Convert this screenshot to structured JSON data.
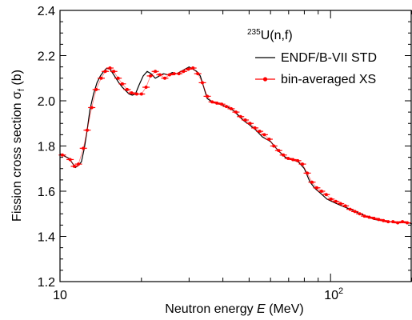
{
  "chart_data": {
    "type": "line",
    "xscale": "log",
    "xlim": [
      10,
      200
    ],
    "ylim": [
      1.2,
      2.4
    ],
    "xlabel_prefix": "Neutron energy ",
    "xlabel_var": "E",
    "xlabel_suffix": " (MeV)",
    "ylabel_prefix": "Fission cross section σ",
    "ylabel_sub": "f",
    "ylabel_suffix": " (b)",
    "xticks": [
      {
        "value": 10,
        "base": "10",
        "exp": ""
      },
      {
        "value": 100,
        "base": "10",
        "exp": "2"
      }
    ],
    "yticks": [
      {
        "value": 1.2,
        "label": "1.2"
      },
      {
        "value": 1.4,
        "label": "1.4"
      },
      {
        "value": 1.6,
        "label": "1.6"
      },
      {
        "value": 1.8,
        "label": "1.8"
      },
      {
        "value": 2.0,
        "label": "2.0"
      },
      {
        "value": 2.2,
        "label": "2.2"
      },
      {
        "value": 2.4,
        "label": "2.4"
      }
    ],
    "legend": {
      "title_sup": "235",
      "title_main": "U(n,f)",
      "placement": "top-right",
      "entries": [
        "ENDF/B-VII STD",
        "bin-averaged XS"
      ]
    },
    "series": [
      {
        "name": "ENDF/B-VII STD",
        "color": "#000000",
        "x": [
          10.0,
          10.4,
          10.8,
          11.1,
          11.4,
          11.7,
          12.0,
          12.3,
          12.6,
          12.9,
          13.3,
          13.7,
          14.1,
          14.5,
          14.9,
          15.3,
          15.7,
          16.1,
          16.5,
          17.0,
          17.5,
          18.0,
          18.5,
          19.0,
          19.6,
          20.3,
          21.0,
          21.7,
          22.5,
          23.3,
          24.1,
          25.0,
          26.0,
          27.0,
          28.0,
          29.0,
          30.0,
          31.0,
          32.0,
          33.0,
          34.0,
          35.0,
          36.5,
          38.0,
          40.0,
          42.0,
          44.0,
          46.0,
          48.0,
          50.0,
          53.0,
          56.0,
          60.0,
          64.0,
          68.0,
          72.0,
          76.0,
          80.0,
          84.0,
          88.0,
          92.0,
          97.0,
          103.0,
          110.0,
          118.0,
          126.0,
          135.0,
          145.0,
          155.0,
          165.0,
          175.0,
          185.0,
          195.0,
          200.0
        ],
        "y": [
          1.765,
          1.755,
          1.745,
          1.725,
          1.705,
          1.715,
          1.73,
          1.79,
          1.87,
          1.96,
          2.03,
          2.08,
          2.11,
          2.13,
          2.145,
          2.14,
          2.12,
          2.1,
          2.08,
          2.06,
          2.045,
          2.03,
          2.025,
          2.03,
          2.07,
          2.11,
          2.13,
          2.12,
          2.1,
          2.11,
          2.12,
          2.115,
          2.125,
          2.12,
          2.13,
          2.14,
          2.15,
          2.14,
          2.13,
          2.11,
          2.06,
          2.01,
          1.995,
          1.99,
          1.98,
          1.97,
          1.955,
          1.93,
          1.91,
          1.895,
          1.87,
          1.84,
          1.82,
          1.78,
          1.75,
          1.74,
          1.73,
          1.7,
          1.64,
          1.61,
          1.59,
          1.565,
          1.55,
          1.535,
          1.52,
          1.505,
          1.49,
          1.475,
          1.47,
          1.465,
          1.46,
          1.465,
          1.46,
          1.455
        ]
      },
      {
        "name": "bin-averaged XS",
        "color": "#ff0000",
        "x": [
          10.2,
          10.9,
          11.3,
          11.7,
          12.2,
          12.6,
          13.1,
          13.6,
          14.2,
          14.7,
          15.3,
          15.8,
          16.4,
          17.0,
          17.7,
          18.4,
          19.2,
          20.0,
          20.8,
          21.6,
          22.5,
          23.4,
          24.4,
          25.4,
          26.4,
          27.5,
          28.6,
          29.8,
          31.0,
          32.3,
          33.6,
          35.0,
          36.5,
          38.0,
          39.6,
          41.2,
          42.9,
          44.7,
          46.5,
          48.4,
          50.4,
          52.5,
          54.7,
          56.9,
          59.3,
          61.7,
          64.3,
          66.9,
          69.7,
          72.6,
          75.6,
          78.7,
          82.0,
          85.4,
          88.9,
          92.6,
          96.4,
          100.4,
          104.6,
          108.9,
          113.4,
          118.1,
          123.0,
          128.1,
          133.4,
          138.9,
          144.6,
          150.6,
          156.8,
          163.3,
          170.1,
          177.1,
          184.4,
          192.0
        ],
        "y": [
          1.76,
          1.74,
          1.71,
          1.72,
          1.79,
          1.87,
          1.97,
          2.05,
          2.1,
          2.13,
          2.145,
          2.13,
          2.1,
          2.075,
          2.05,
          2.035,
          2.03,
          2.03,
          2.06,
          2.11,
          2.13,
          2.115,
          2.1,
          2.115,
          2.12,
          2.12,
          2.13,
          2.14,
          2.145,
          2.12,
          2.08,
          2.02,
          1.995,
          1.99,
          1.985,
          1.975,
          1.965,
          1.95,
          1.93,
          1.915,
          1.9,
          1.88,
          1.865,
          1.85,
          1.83,
          1.8,
          1.78,
          1.76,
          1.745,
          1.74,
          1.735,
          1.72,
          1.68,
          1.64,
          1.615,
          1.6,
          1.585,
          1.565,
          1.555,
          1.545,
          1.535,
          1.52,
          1.51,
          1.5,
          1.49,
          1.485,
          1.48,
          1.475,
          1.47,
          1.465,
          1.465,
          1.46,
          1.465,
          1.46
        ]
      }
    ]
  }
}
